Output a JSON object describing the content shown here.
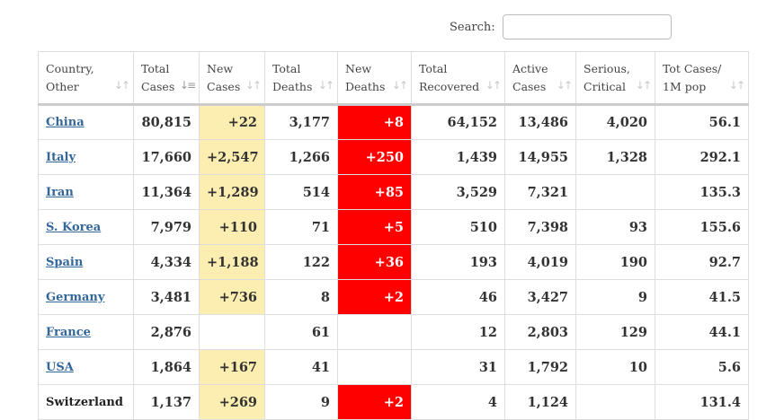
{
  "search": {
    "label": "Search:",
    "value": "",
    "placeholder": ""
  },
  "headers": [
    {
      "label": "Country,\nOther",
      "sort": "sort-both-icon",
      "active": false
    },
    {
      "label": "Total\nCases",
      "sort": "sort-desc-icon",
      "active": true
    },
    {
      "label": "New\nCases",
      "sort": "sort-both-icon",
      "active": false
    },
    {
      "label": "Total\nDeaths",
      "sort": "sort-both-icon",
      "active": false
    },
    {
      "label": "New\nDeaths",
      "sort": "sort-both-icon",
      "active": false
    },
    {
      "label": "Total\nRecovered",
      "sort": "sort-both-icon",
      "active": false
    },
    {
      "label": "Active\nCases",
      "sort": "sort-both-icon",
      "active": false
    },
    {
      "label": "Serious,\nCritical",
      "sort": "sort-both-icon",
      "active": false
    },
    {
      "label": "Tot Cases/\n1M pop",
      "sort": "sort-both-icon",
      "active": false
    }
  ],
  "rows": [
    {
      "country": "China",
      "link": true,
      "total_cases": "80,815",
      "new_cases": "+22",
      "total_deaths": "3,177",
      "new_deaths": "+8",
      "total_recovered": "64,152",
      "active_cases": "13,486",
      "serious_critical": "4,020",
      "per_million": "56.1"
    },
    {
      "country": "Italy",
      "link": true,
      "total_cases": "17,660",
      "new_cases": "+2,547",
      "total_deaths": "1,266",
      "new_deaths": "+250",
      "total_recovered": "1,439",
      "active_cases": "14,955",
      "serious_critical": "1,328",
      "per_million": "292.1"
    },
    {
      "country": "Iran",
      "link": true,
      "total_cases": "11,364",
      "new_cases": "+1,289",
      "total_deaths": "514",
      "new_deaths": "+85",
      "total_recovered": "3,529",
      "active_cases": "7,321",
      "serious_critical": "",
      "per_million": "135.3"
    },
    {
      "country": "S. Korea",
      "link": true,
      "total_cases": "7,979",
      "new_cases": "+110",
      "total_deaths": "71",
      "new_deaths": "+5",
      "total_recovered": "510",
      "active_cases": "7,398",
      "serious_critical": "93",
      "per_million": "155.6"
    },
    {
      "country": "Spain",
      "link": true,
      "total_cases": "4,334",
      "new_cases": "+1,188",
      "total_deaths": "122",
      "new_deaths": "+36",
      "total_recovered": "193",
      "active_cases": "4,019",
      "serious_critical": "190",
      "per_million": "92.7"
    },
    {
      "country": "Germany",
      "link": true,
      "total_cases": "3,481",
      "new_cases": "+736",
      "total_deaths": "8",
      "new_deaths": "+2",
      "total_recovered": "46",
      "active_cases": "3,427",
      "serious_critical": "9",
      "per_million": "41.5"
    },
    {
      "country": "France",
      "link": true,
      "total_cases": "2,876",
      "new_cases": "",
      "total_deaths": "61",
      "new_deaths": "",
      "total_recovered": "12",
      "active_cases": "2,803",
      "serious_critical": "129",
      "per_million": "44.1"
    },
    {
      "country": "USA",
      "link": true,
      "total_cases": "1,864",
      "new_cases": "+167",
      "total_deaths": "41",
      "new_deaths": "",
      "total_recovered": "31",
      "active_cases": "1,792",
      "serious_critical": "10",
      "per_million": "5.6"
    },
    {
      "country": "Switzerland",
      "link": false,
      "total_cases": "1,137",
      "new_cases": "+269",
      "total_deaths": "9",
      "new_deaths": "+2",
      "total_recovered": "4",
      "active_cases": "1,124",
      "serious_critical": "",
      "per_million": "131.4"
    }
  ],
  "colors": {
    "new_cases_highlight": "#fcedb0",
    "new_deaths_highlight": "#ff0000",
    "link": "#336699"
  }
}
